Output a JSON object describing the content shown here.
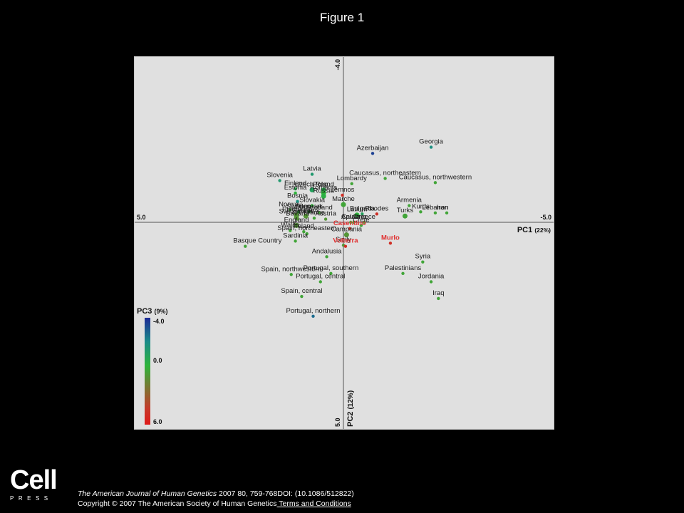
{
  "figure_title": "Figure 1",
  "logo": {
    "word": "Cell",
    "sub": "PRESS"
  },
  "footer": {
    "journal": "The American Journal of Human Genetics",
    "citation": " 2007 80, 759-768DOI: (10.1086/512822)",
    "copyright": "Copyright © 2007 The American Society of Human Genetics",
    "terms_link": " Terms and Conditions"
  },
  "chart_data": {
    "type": "scatter",
    "x_axis": {
      "title": "PC1",
      "percent": "(22%)",
      "left_label": "5.0",
      "right_label": "-5.0",
      "min": 5.0,
      "max": -5.0
    },
    "y_axis": {
      "title": "PC2",
      "percent": "(12%)",
      "top_label": "-4.0",
      "bottom_label": "5.0",
      "min": -4.0,
      "max": 5.0
    },
    "color_scale": {
      "title": "PC3",
      "percent": "(9%)",
      "tick_top": "-4.0",
      "tick_mid": "0.0",
      "tick_bottom": "6.0",
      "min": -4.0,
      "max": 6.0,
      "colors": [
        "#1c2a96",
        "#1a8a8a",
        "#2eb43a",
        "#c63a2a",
        "#e01a1a"
      ]
    },
    "highlight_color": "#e03030",
    "points": [
      {
        "label": "Georgia",
        "x": -4.2,
        "y": -3.6,
        "pc3": -1.5
      },
      {
        "label": "Azerbaijan",
        "x": -1.4,
        "y": -3.3,
        "pc3": -3.5
      },
      {
        "label": "Latvia",
        "x": 1.5,
        "y": -2.3,
        "pc3": -1.0
      },
      {
        "label": "Caucasus, northeastern",
        "x": -2.0,
        "y": -2.1,
        "pc3": 1.0
      },
      {
        "label": "Slovenia",
        "x": 3.05,
        "y": -2.0,
        "pc3": -1.0
      },
      {
        "label": "Caucasus, northwestern",
        "x": -4.4,
        "y": -1.9,
        "pc3": 1.0
      },
      {
        "label": "Lombardy",
        "x": -0.4,
        "y": -1.85,
        "pc3": 1.0
      },
      {
        "label": "Finland",
        "x": 2.3,
        "y": -1.6,
        "pc3": 0.0
      },
      {
        "label": "Czech Rep.",
        "x": 1.5,
        "y": -1.55,
        "pc3": -0.5
      },
      {
        "label": "Poland",
        "x": 0.95,
        "y": -1.55,
        "pc3": 0.0
      },
      {
        "label": "Estonia",
        "x": 2.3,
        "y": -1.4,
        "pc3": 0.5
      },
      {
        "label": "Romania",
        "x": 0.95,
        "y": -1.4,
        "pc3": 0.5
      },
      {
        "label": "Lemnos",
        "x": 0.05,
        "y": -1.3,
        "pc3": 5.0
      },
      {
        "label": "Russia",
        "x": 0.95,
        "y": -1.25,
        "pc3": 0.2
      },
      {
        "label": "Bosnia",
        "x": 2.2,
        "y": -1.0,
        "pc3": -1.5
      },
      {
        "label": "Marche",
        "x": 0.0,
        "y": -0.85,
        "pc3": 1.0
      },
      {
        "label": "Slovakia",
        "x": 1.5,
        "y": -0.8,
        "pc3": 0.5
      },
      {
        "label": "Armenia",
        "x": -3.15,
        "y": -0.8,
        "pc3": 1.0
      },
      {
        "label": "Norway",
        "x": 2.55,
        "y": -0.6,
        "pc3": 1.0
      },
      {
        "label": "Sweden",
        "x": 2.15,
        "y": -0.5,
        "pc3": 0.5
      },
      {
        "label": "Denmark",
        "x": 1.65,
        "y": -0.5,
        "pc3": 0.5
      },
      {
        "label": "Kurds",
        "x": -3.7,
        "y": -0.5,
        "pc3": 1.0
      },
      {
        "label": "Iran",
        "x": -4.95,
        "y": -0.45,
        "pc3": 1.0
      },
      {
        "label": "Scotland",
        "x": 1.15,
        "y": -0.45,
        "pc3": 1.0
      },
      {
        "label": "Lebanon",
        "x": -4.4,
        "y": -0.45,
        "pc3": 1.0
      },
      {
        "label": "Piedmont",
        "x": 2.25,
        "y": -0.35,
        "pc3": 1.5
      },
      {
        "label": "Latium",
        "x": -0.65,
        "y": -0.35,
        "pc3": 0.5
      },
      {
        "label": "Bulgaria",
        "x": -0.9,
        "y": -0.4,
        "pc3": -0.5
      },
      {
        "label": "Rhodes",
        "x": -1.6,
        "y": -0.4,
        "pc3": 5.0
      },
      {
        "label": "Turks",
        "x": -2.95,
        "y": -0.3,
        "pc3": 1.0
      },
      {
        "label": "Switzerland",
        "x": 2.25,
        "y": -0.25,
        "pc3": 1.5
      },
      {
        "label": "Germany",
        "x": 1.8,
        "y": -0.3,
        "pc3": 1.5
      },
      {
        "label": "Austria",
        "x": 0.85,
        "y": -0.15,
        "pc3": 1.5
      },
      {
        "label": "Bavaria",
        "x": 2.2,
        "y": -0.15,
        "pc3": 1.5
      },
      {
        "label": "Apulia",
        "x": -0.35,
        "y": 0.0,
        "pc3": 1.0
      },
      {
        "label": "Calabria",
        "x": -0.5,
        "y": 0.0,
        "pc3": 1.0
      },
      {
        "label": "Greece",
        "x": -1.0,
        "y": 0.0,
        "pc3": 1.0
      },
      {
        "label": "France",
        "x": 1.4,
        "y": -0.2,
        "pc3": 1.0
      },
      {
        "label": "England",
        "x": 2.25,
        "y": 0.15,
        "pc3": 1.5
      },
      {
        "label": "Crete",
        "x": -0.85,
        "y": 0.15,
        "pc3": 1.0
      },
      {
        "label": "Casentino",
        "x": -0.3,
        "y": 0.3,
        "pc3": 5.0,
        "highlight": true
      },
      {
        "label": "Wales",
        "x": 2.55,
        "y": 0.4,
        "pc3": 1.0
      },
      {
        "label": "Ireland",
        "x": 1.9,
        "y": 0.45,
        "pc3": 1.0
      },
      {
        "label": "Campania",
        "x": -0.15,
        "y": 0.6,
        "pc3": 1.5
      },
      {
        "label": "Spain, northeastern",
        "x": 1.75,
        "y": 0.55,
        "pc3": 1.0
      },
      {
        "label": "Sardinia",
        "x": 2.3,
        "y": 0.9,
        "pc3": 1.0
      },
      {
        "label": "Murlo",
        "x": -2.25,
        "y": 1.0,
        "pc3": 5.0,
        "highlight": true
      },
      {
        "label": "Sicily",
        "x": 0.0,
        "y": 1.1,
        "pc3": 1.5
      },
      {
        "label": "Volterra",
        "x": -0.1,
        "y": 1.15,
        "pc3": 5.0,
        "highlight": true
      },
      {
        "label": "Basque Country",
        "x": 4.7,
        "y": 1.15,
        "pc3": 1.0
      },
      {
        "label": "Andalusia",
        "x": 0.8,
        "y": 1.65,
        "pc3": 1.0
      },
      {
        "label": "Syria",
        "x": -3.8,
        "y": 1.9,
        "pc3": 1.0
      },
      {
        "label": "Spain, northwestern",
        "x": 2.5,
        "y": 2.5,
        "pc3": 1.0
      },
      {
        "label": "Portugal, southern",
        "x": 0.6,
        "y": 2.45,
        "pc3": 1.0
      },
      {
        "label": "Palestinians",
        "x": -2.85,
        "y": 2.45,
        "pc3": 1.0
      },
      {
        "label": "Portugal, central",
        "x": 1.1,
        "y": 2.85,
        "pc3": 1.0
      },
      {
        "label": "Jordania",
        "x": -4.2,
        "y": 2.85,
        "pc3": 1.0
      },
      {
        "label": "Spain, central",
        "x": 2.0,
        "y": 3.55,
        "pc3": 1.0
      },
      {
        "label": "Iraq",
        "x": -4.55,
        "y": 3.65,
        "pc3": 1.0
      },
      {
        "label": "Portugal, northern",
        "x": 1.45,
        "y": 4.5,
        "pc3": -2.5
      }
    ]
  }
}
